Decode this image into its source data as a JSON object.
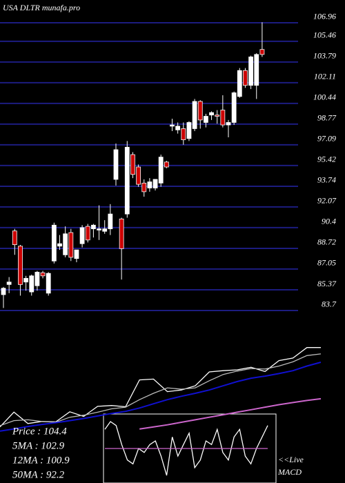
{
  "chart_data": [
    {
      "type": "candlestick",
      "title": "USA DLTR munafa.pro",
      "ylim": [
        83.42,
        108.8
      ],
      "yticks": [
        106.96,
        105.46,
        103.79,
        102.11,
        100.44,
        98.77,
        97.09,
        95.42,
        93.74,
        92.07,
        90.4,
        88.72,
        87.05,
        85.37,
        83.7
      ],
      "grid": true,
      "grid_color": "#1c1c80",
      "up_color": "#ffffff",
      "down_color": "#cc0000",
      "open": [
        84.98,
        85.8,
        90.13,
        88.9,
        86.0,
        85.2,
        85.7,
        86.75,
        85.1,
        87.7,
        88.9,
        88.2,
        90.0,
        87.9,
        89.1,
        90.5,
        90.3,
        90.2,
        90.1,
        90.3,
        94.3,
        91.1,
        91.5,
        96.3,
        95.3,
        94.0,
        93.6,
        93.6,
        94.0,
        95.7,
        98.6,
        98.3,
        98.4,
        97.6,
        98.4,
        100.6,
        98.9,
        99.5,
        99.5,
        99.9,
        98.7,
        98.9,
        101.0,
        103.1,
        101.9,
        101.9,
        104.8
      ],
      "high": [
        85.6,
        86.4,
        90.3,
        89.0,
        86.5,
        86.6,
        86.9,
        86.9,
        86.8,
        90.8,
        89.8,
        90.5,
        90.3,
        88.6,
        90.6,
        90.7,
        90.7,
        92.2,
        91.0,
        92.3,
        97.2,
        91.2,
        97.4,
        96.5,
        95.5,
        94.3,
        94.4,
        94.3,
        96.3,
        95.8,
        99.2,
        98.9,
        98.9,
        99.0,
        100.8,
        100.7,
        99.6,
        99.8,
        99.9,
        101.1,
        99.1,
        101.4,
        103.3,
        103.3,
        104.3,
        104.5,
        107.0
      ],
      "low": [
        83.9,
        85.1,
        88.2,
        84.9,
        85.3,
        84.9,
        85.3,
        86.3,
        84.9,
        87.5,
        88.6,
        88.0,
        87.7,
        87.6,
        88.8,
        89.2,
        89.6,
        89.4,
        89.9,
        89.8,
        93.8,
        86.2,
        91.2,
        94.4,
        93.7,
        92.9,
        93.3,
        93.4,
        93.7,
        95.2,
        98.2,
        98.0,
        97.1,
        97.4,
        98.2,
        98.4,
        98.5,
        99.1,
        98.8,
        98.5,
        97.7,
        98.7,
        100.9,
        101.7,
        101.6,
        100.8,
        104.2
      ],
      "close": [
        85.5,
        86.0,
        89.02,
        85.8,
        86.3,
        86.5,
        86.8,
        86.5,
        86.7,
        90.6,
        89.1,
        89.9,
        88.0,
        88.6,
        90.4,
        89.4,
        90.6,
        90.3,
        90.3,
        91.5,
        96.7,
        88.7,
        96.9,
        94.7,
        93.9,
        93.3,
        94.1,
        94.3,
        96.1,
        95.3,
        98.7,
        98.6,
        97.5,
        98.9,
        100.6,
        99.1,
        99.4,
        99.7,
        99.4,
        98.7,
        98.9,
        101.3,
        103.1,
        101.9,
        104.2,
        104.4,
        104.4
      ]
    },
    {
      "type": "line",
      "ylim": [
        82,
        108.3
      ],
      "legend": [
        "Price : 104.4",
        "5MA : 102.9",
        "12MA : 100.9",
        "50MA : 92.2"
      ],
      "series": [
        {
          "color": "#ffffff",
          "values": [
            85.5,
            89.02,
            86.3,
            86.8,
            86.7,
            89.1,
            88.0,
            90.4,
            90.6,
            90.3,
            96.7,
            96.9,
            93.9,
            94.3,
            95.3,
            98.6,
            98.9,
            99.1,
            99.7,
            98.7,
            101.3,
            101.9,
            104.4,
            104.4
          ]
        },
        {
          "color": "#bbbbbb",
          "values": [
            85.8,
            87.0,
            87.2,
            86.8,
            86.6,
            87.8,
            88.3,
            89.0,
            89.8,
            90.2,
            92.0,
            93.5,
            94.8,
            94.5,
            94.8,
            96.5,
            98.0,
            98.8,
            99.4,
            99.3,
            100.0,
            101.0,
            102.5,
            102.9
          ]
        },
        {
          "color": "#1010d0",
          "values": [
            84.5,
            85.0,
            85.6,
            86.1,
            86.5,
            87.0,
            87.5,
            88.1,
            88.7,
            89.2,
            90.0,
            91.0,
            92.0,
            92.8,
            93.5,
            94.3,
            95.3,
            96.3,
            97.1,
            97.6,
            98.2,
            98.9,
            100.0,
            100.9
          ]
        },
        {
          "color": "#cc66cc",
          "values": [
            null,
            null,
            null,
            null,
            null,
            null,
            null,
            null,
            null,
            null,
            85.0,
            85.5,
            86.0,
            86.6,
            87.2,
            87.8,
            88.4,
            89.0,
            89.6,
            90.2,
            90.8,
            91.3,
            91.8,
            92.2
          ]
        }
      ]
    },
    {
      "type": "line",
      "label": "MACD",
      "live_label": "<<Live",
      "ylim": [
        -1.5,
        1.5
      ],
      "series": [
        {
          "color": "#ffffff",
          "values": [
            0.83,
            1.17,
            1,
            0.17,
            -0.5,
            -0.67,
            0,
            -0.17,
            0.17,
            0.33,
            -0.33,
            -1.17,
            0.5,
            -0.33,
            0.17,
            0.67,
            -0.83,
            -0.5,
            0.33,
            0.17,
            0.83,
            -0.17,
            -0.5,
            0.5,
            0.83,
            -0.33,
            -0.67,
            0,
            0.5,
            1
          ]
        },
        {
          "color": "#cc66cc",
          "values": [
            0,
            0
          ]
        }
      ]
    }
  ]
}
